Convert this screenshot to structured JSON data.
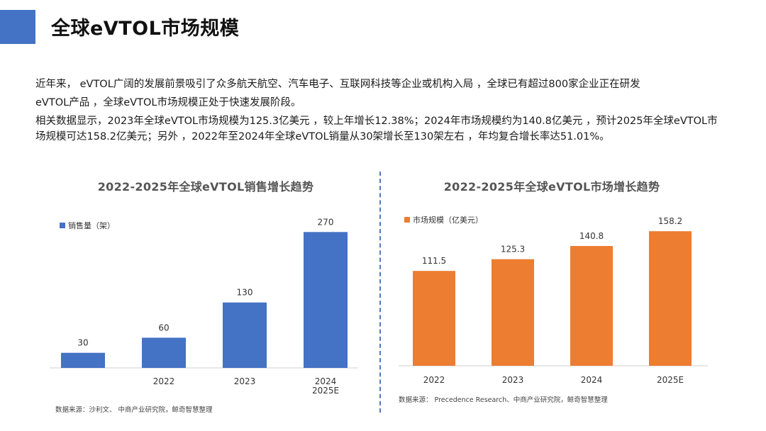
{
  "slide": {
    "title": "全球eVTOL市场规模",
    "accent_color": "#4472c4"
  },
  "paragraphs": [
    "近年来，  eVTOL广阔的发展前景吸引了众多航天航空、汽车电子、互联网科技等企业或机构入局 ，全球已有超过800家企业正在研发",
    "eVTOL产品 ，全球eVTOL市场规模正处于快速发展阶段。",
    "相关数据显示，2023年全球eVTOL市场规模为125.3亿美元 ，较上年增长12.38%；2024年市场规模约为140.8亿美元 ，预计2025年全球eVTOL市场规模可达158.2亿美元；另外 ，2022年至2024年全球eVTOL销量从30架增长至130架左右 ，年均复合增长率达51.01%。"
  ],
  "chart_data": [
    {
      "type": "bar",
      "title": "2022-2025年全球eVTOL销售增长趋势",
      "categories": [
        "",
        "2022",
        "2023",
        "2024\n2025E"
      ],
      "series": [
        {
          "name": "销售量（架）",
          "values": [
            30,
            60,
            130,
            270
          ],
          "color": "#4472c4"
        }
      ],
      "ylim": [
        0,
        300
      ],
      "grid": false,
      "legend_position": "top-left",
      "source": "数据来源：沙利文、 中商产业研究院，鲸奇智慧整理"
    },
    {
      "type": "bar",
      "title": "2022-2025年全球eVTOL市场增长趋势",
      "categories": [
        "2022",
        "2023",
        "2024",
        "2025E"
      ],
      "series": [
        {
          "name": "市场规模（亿美元）",
          "values": [
            111.5,
            125.3,
            140.8,
            158.2
          ],
          "color": "#ed7d31"
        }
      ],
      "ylim": [
        0,
        175
      ],
      "grid": false,
      "legend_position": "top-left",
      "source": "数据来源： Precedence Research、中商产业研究院，鲸奇智慧整理"
    }
  ]
}
